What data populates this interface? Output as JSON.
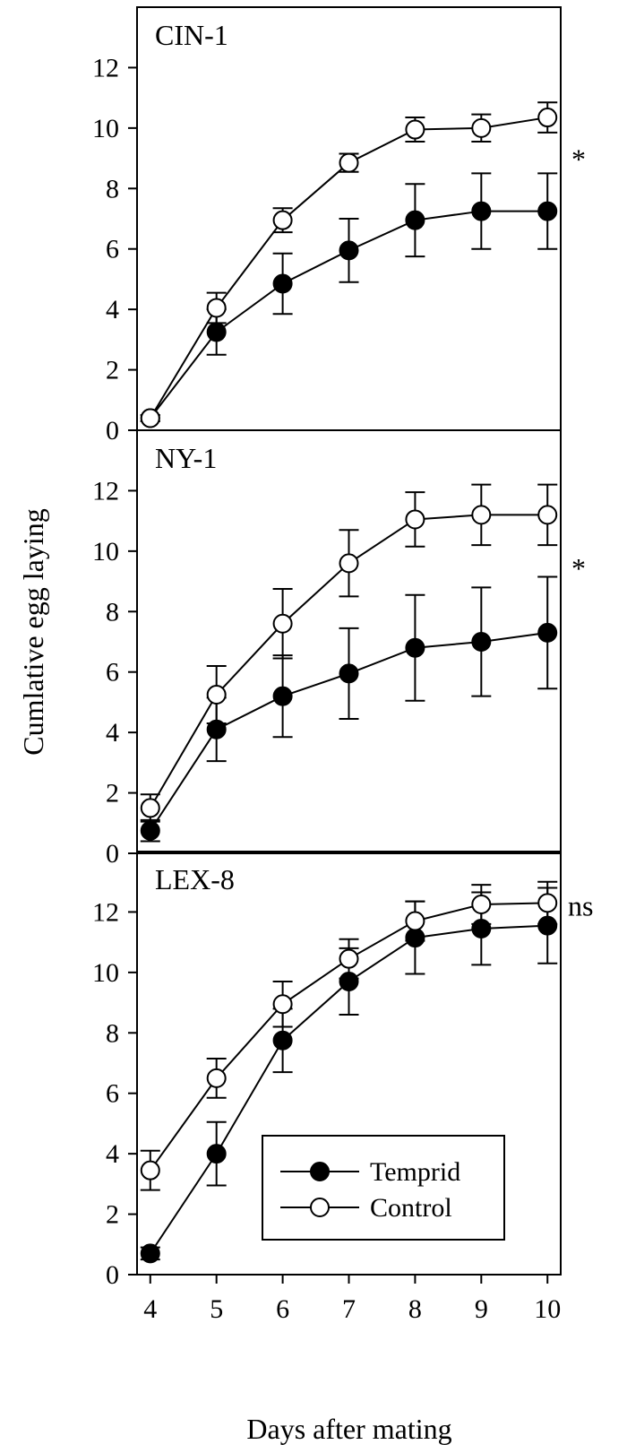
{
  "chart_data": {
    "type": "line",
    "xlabel": "Days after mating",
    "ylabel": "Cumlative egg laying",
    "x": [
      4,
      5,
      6,
      7,
      8,
      9,
      10
    ],
    "xlim": [
      3.8,
      10.2
    ],
    "ylim": [
      0,
      14
    ],
    "yticks": [
      0,
      2,
      4,
      6,
      8,
      10,
      12
    ],
    "xticks": [
      4,
      5,
      6,
      7,
      8,
      9,
      10
    ],
    "legend": {
      "placement": "lower-right of bottom panel",
      "entries": [
        {
          "name": "Temprid",
          "marker": "filled-circle"
        },
        {
          "name": "Control",
          "marker": "open-circle"
        }
      ]
    },
    "panels": [
      {
        "title": "CIN-1",
        "significance": "*",
        "series": [
          {
            "name": "Temprid",
            "values": [
              0.4,
              3.25,
              4.85,
              5.95,
              6.95,
              7.25,
              7.25
            ],
            "errors": [
              0.1,
              0.75,
              1.0,
              1.05,
              1.2,
              1.25,
              1.25
            ]
          },
          {
            "name": "Control",
            "values": [
              0.4,
              4.05,
              6.95,
              8.85,
              9.95,
              10.0,
              10.35
            ],
            "errors": [
              0.1,
              0.5,
              0.4,
              0.3,
              0.4,
              0.45,
              0.5
            ]
          }
        ]
      },
      {
        "title": "NY-1",
        "significance": "*",
        "series": [
          {
            "name": "Temprid",
            "values": [
              0.75,
              4.1,
              5.2,
              5.95,
              6.8,
              7.0,
              7.3
            ],
            "errors": [
              0.35,
              1.05,
              1.35,
              1.5,
              1.75,
              1.8,
              1.85
            ]
          },
          {
            "name": "Control",
            "values": [
              1.5,
              5.25,
              7.6,
              9.6,
              11.05,
              11.2,
              11.2
            ],
            "errors": [
              0.45,
              0.95,
              1.15,
              1.1,
              0.9,
              1.0,
              1.0
            ]
          }
        ]
      },
      {
        "title": "LEX-8",
        "significance": "ns",
        "series": [
          {
            "name": "Temprid",
            "values": [
              0.7,
              4.0,
              7.75,
              9.7,
              11.15,
              11.45,
              11.55
            ],
            "errors": [
              0.2,
              1.05,
              1.05,
              1.1,
              1.2,
              1.2,
              1.25
            ]
          },
          {
            "name": "Control",
            "values": [
              3.45,
              6.5,
              8.95,
              10.45,
              11.7,
              12.25,
              12.3
            ],
            "errors": [
              0.65,
              0.65,
              0.75,
              0.65,
              0.65,
              0.65,
              0.7
            ]
          }
        ]
      }
    ]
  }
}
